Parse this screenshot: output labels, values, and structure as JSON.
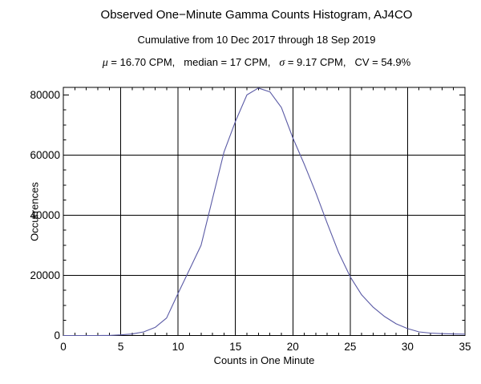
{
  "chart_data": {
    "type": "line",
    "title": "Observed One−Minute Gamma Counts Histogram, AJ4CO",
    "subtitle": "Cumulative from 10 Dec 2017 through 18 Sep 2019",
    "stats": {
      "mu_symbol": "μ",
      "mu_rest": " = 16.70 CPM,",
      "median": "median = 17 CPM,",
      "sigma_symbol": "σ",
      "sigma_rest": " = 9.17 CPM,",
      "cv": "CV = 54.9%"
    },
    "xlabel": "Counts in One Minute",
    "ylabel": "Occurrences",
    "x": [
      0,
      1,
      2,
      3,
      4,
      5,
      6,
      7,
      8,
      9,
      10,
      11,
      12,
      13,
      14,
      15,
      16,
      17,
      18,
      19,
      20,
      21,
      22,
      23,
      24,
      25,
      26,
      27,
      28,
      29,
      30,
      31,
      32,
      33,
      34,
      35
    ],
    "values": [
      0,
      0,
      0,
      5,
      30,
      200,
      500,
      1200,
      2700,
      5800,
      14000,
      22000,
      30000,
      45500,
      61000,
      71200,
      80000,
      82300,
      81000,
      75800,
      65700,
      56900,
      47500,
      37300,
      27500,
      19500,
      13500,
      9400,
      6300,
      3900,
      2300,
      1200,
      800,
      600,
      500,
      450
    ],
    "xlim": [
      0,
      35
    ],
    "ylim": [
      0,
      82500
    ],
    "x_major_ticks": [
      0,
      5,
      10,
      15,
      20,
      25,
      30,
      35
    ],
    "x_tick_labels": [
      "0",
      "5",
      "10",
      "15",
      "20",
      "25",
      "30",
      "35"
    ],
    "x_minor_step": 1,
    "y_major_ticks": [
      0,
      20000,
      40000,
      60000,
      80000
    ],
    "y_tick_labels": [
      "0",
      "20000",
      "40000",
      "60000",
      "80000"
    ],
    "y_minor_step": 5000,
    "grid_x": [
      5,
      10,
      15,
      20,
      25,
      30
    ],
    "grid_y": [
      20000,
      40000,
      60000
    ],
    "grid_on": true,
    "legend": "none",
    "line_color": "#5a5aa5",
    "frame_color": "#000000",
    "background_color": "#ffffff"
  }
}
